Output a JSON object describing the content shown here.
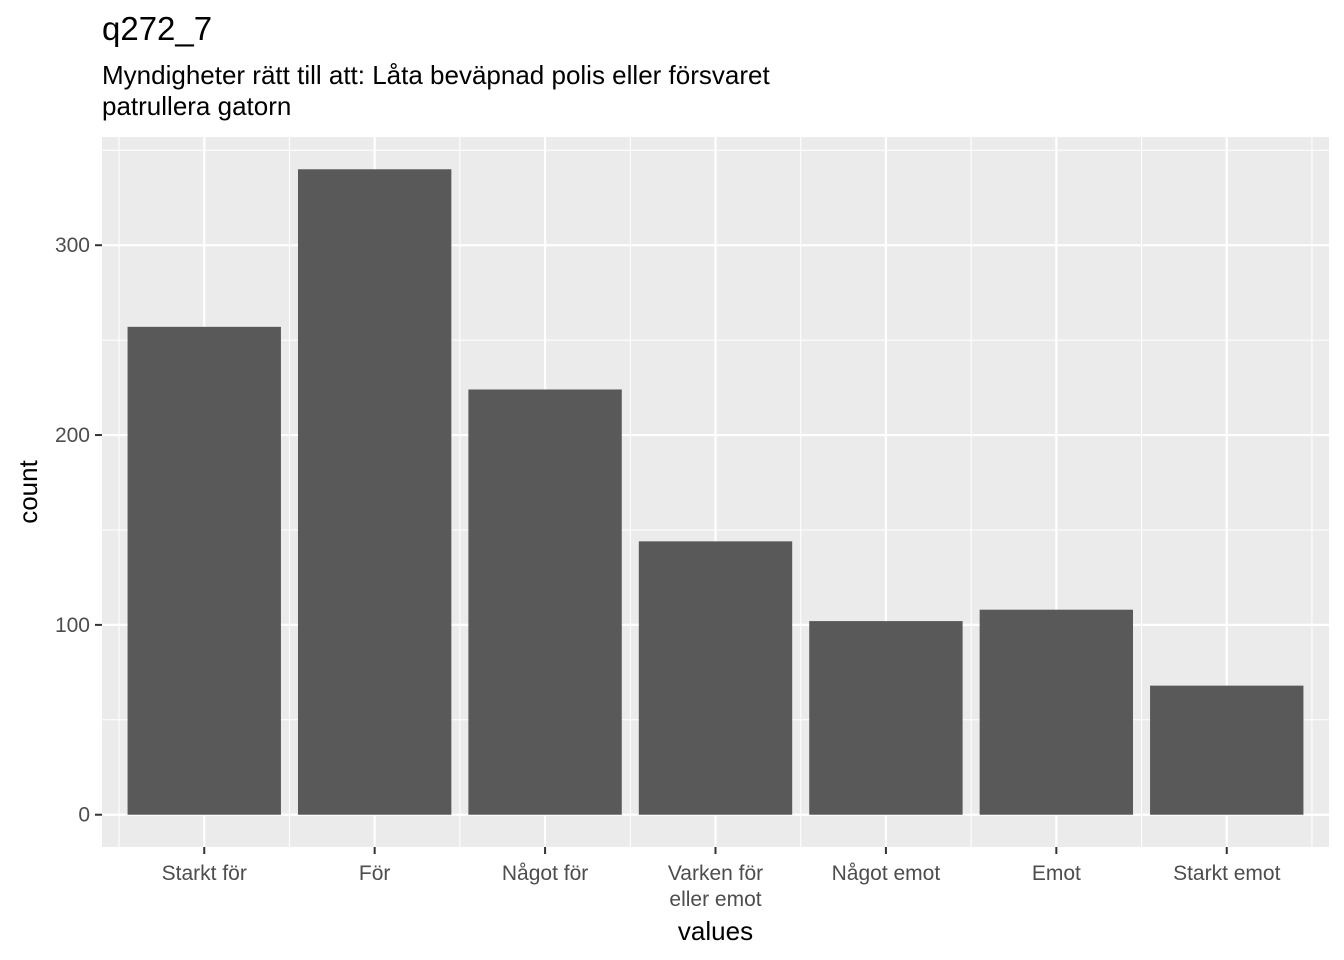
{
  "chart_data": {
    "type": "bar",
    "title": "q272_7",
    "subtitle_lines": [
      "Myndigheter rätt till att: Låta beväpnad polis eller försvaret",
      "patrullera gatorn"
    ],
    "xlabel": "values",
    "ylabel": "count",
    "categories": [
      [
        "Starkt för"
      ],
      [
        "För"
      ],
      [
        "Något för"
      ],
      [
        "Varken för",
        "eller emot"
      ],
      [
        "Något emot"
      ],
      [
        "Emot"
      ],
      [
        "Starkt emot"
      ]
    ],
    "values": [
      257,
      340,
      224,
      144,
      102,
      108,
      68
    ],
    "ylim": [
      -17,
      357
    ],
    "yticks": [
      0,
      100,
      200,
      300
    ],
    "grid": true,
    "colors": {
      "bar": "#595959",
      "panel": "#ebebeb",
      "grid": "#ffffff"
    }
  }
}
